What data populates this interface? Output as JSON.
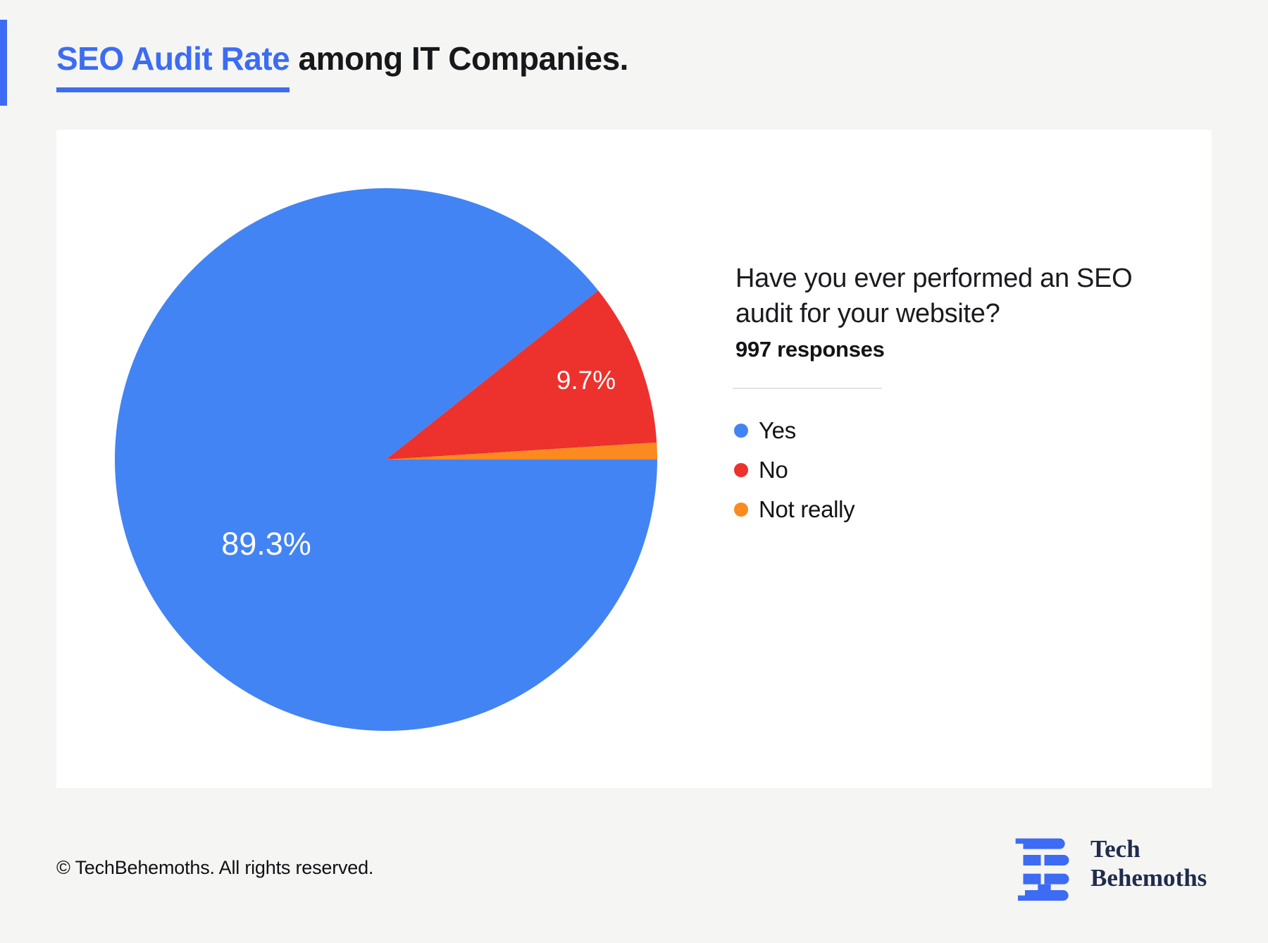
{
  "page": {
    "title_highlight": "SEO Audit Rate",
    "title_rest": " among IT Companies.",
    "footer_copyright": "© TechBehemoths. All rights reserved.",
    "brand": {
      "line1": "Tech",
      "line2": "Behemoths"
    }
  },
  "panel": {
    "question_line1": "Have you ever performed an SEO",
    "question_line2": "audit for your website?",
    "responses_label": "997 responses"
  },
  "chart_data": {
    "type": "pie",
    "title": "SEO Audit Rate among IT Companies",
    "question": "Have you ever performed an SEO audit for your website?",
    "responses_count": 997,
    "categories": [
      "Yes",
      "No",
      "Not really"
    ],
    "values": [
      89.3,
      9.7,
      1.0
    ],
    "unit": "%",
    "colors": [
      "#4284F3",
      "#ED312C",
      "#FB8A21"
    ],
    "slice_labels": [
      "89.3%",
      "9.7%",
      ""
    ],
    "legend_position": "right",
    "start_angle_deg": 0,
    "direction": "clockwise",
    "label_color": "#FFFFFF"
  }
}
